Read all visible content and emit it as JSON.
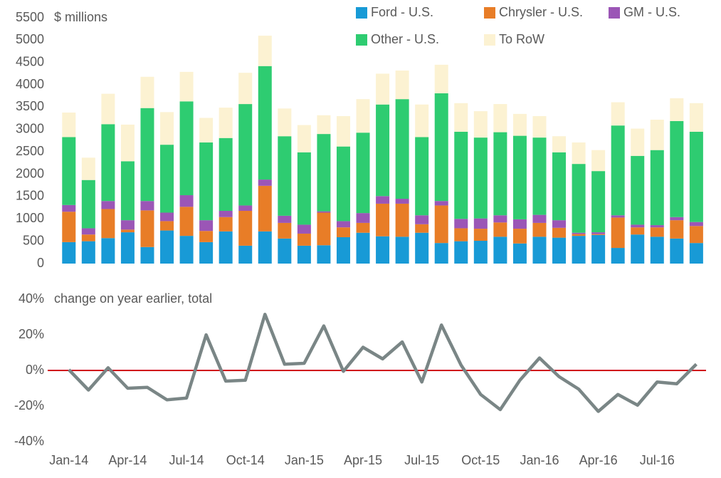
{
  "chart_data": [
    {
      "type": "stacked-bar",
      "axis_title": "$ millions",
      "ylim": [
        0,
        5500
      ],
      "yticks": [
        0,
        500,
        1000,
        1500,
        2000,
        2500,
        3000,
        3500,
        4000,
        4500,
        5000,
        5500
      ],
      "series": [
        {
          "name": "Ford - U.S.",
          "color": "#189ad6",
          "values": [
            480,
            500,
            570,
            700,
            370,
            740,
            620,
            480,
            720,
            400,
            720,
            560,
            400,
            410,
            590,
            690,
            610,
            600,
            690,
            460,
            500,
            510,
            600,
            450,
            600,
            580,
            620,
            640,
            350,
            650,
            600,
            560,
            460
          ]
        },
        {
          "name": "Chrysler - U.S.",
          "color": "#e87d27",
          "values": [
            680,
            150,
            650,
            60,
            820,
            210,
            650,
            250,
            320,
            780,
            1020,
            350,
            270,
            730,
            220,
            220,
            730,
            740,
            190,
            840,
            290,
            270,
            320,
            330,
            310,
            220,
            40,
            20,
            680,
            160,
            210,
            410,
            380
          ]
        },
        {
          "name": "GM - U.S.",
          "color": "#9b56b6",
          "values": [
            150,
            140,
            180,
            210,
            210,
            190,
            260,
            240,
            140,
            120,
            140,
            160,
            200,
            30,
            140,
            220,
            170,
            110,
            200,
            100,
            210,
            230,
            160,
            210,
            180,
            170,
            30,
            40,
            50,
            60,
            50,
            70,
            90
          ]
        },
        {
          "name": "Other - U.S.",
          "color": "#2ecc71",
          "values": [
            1520,
            1080,
            1720,
            1320,
            2080,
            1520,
            2100,
            1740,
            1630,
            2270,
            2540,
            1780,
            1620,
            1730,
            1670,
            1800,
            2050,
            2230,
            1750,
            2410,
            1950,
            1810,
            1860,
            1870,
            1730,
            1520,
            1540,
            1370,
            2010,
            1540,
            1680,
            2150,
            2020
          ]
        },
        {
          "name": "To RoW",
          "color": "#fcf2d2",
          "values": [
            550,
            500,
            680,
            820,
            700,
            730,
            660,
            550,
            680,
            700,
            680,
            620,
            610,
            420,
            680,
            750,
            690,
            640,
            730,
            640,
            640,
            590,
            630,
            490,
            480,
            360,
            480,
            470,
            520,
            610,
            680,
            510,
            640
          ]
        }
      ]
    },
    {
      "type": "line",
      "axis_title": "change on year earlier, total",
      "categories": [
        "Jan-14",
        null,
        null,
        "Apr-14",
        null,
        null,
        "Jul-14",
        null,
        null,
        "Oct-14",
        null,
        null,
        "Jan-15",
        null,
        null,
        "Apr-15",
        null,
        null,
        "Jul-15",
        null,
        null,
        "Oct-15",
        null,
        null,
        "Jan-16",
        null,
        null,
        "Apr-16",
        null,
        null,
        "Jul-16",
        null,
        null
      ],
      "ylim": [
        -40,
        40
      ],
      "yticks": [
        {
          "value": -40,
          "label": "-40%"
        },
        {
          "value": -20,
          "label": "-20%"
        },
        {
          "value": 0,
          "label": "0%"
        },
        {
          "value": 20,
          "label": "20%"
        },
        {
          "value": 40,
          "label": "40%"
        }
      ],
      "reference_line": {
        "value": 0,
        "color": "#d0021b"
      },
      "series": [
        {
          "color": "#7a8686",
          "values": [
            0.4,
            -11,
            1.5,
            -10,
            -9.5,
            -16.5,
            -15.5,
            20,
            -6,
            -5.5,
            31.5,
            3.5,
            4,
            25,
            -0.5,
            13,
            6.5,
            16,
            -6.5,
            25.5,
            3,
            -13.5,
            -22,
            -5.5,
            7,
            -3.5,
            -10.5,
            -23,
            -13.5,
            -19.5,
            -6.5,
            -7.5,
            3.5
          ]
        }
      ]
    }
  ]
}
